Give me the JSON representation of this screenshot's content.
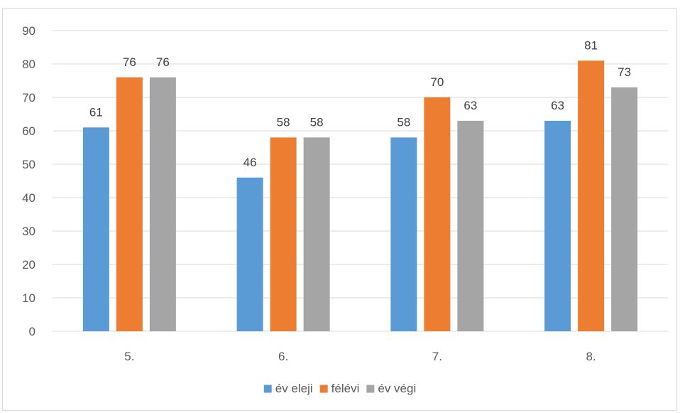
{
  "chart_data": {
    "type": "bar",
    "categories": [
      "5.",
      "6.",
      "7.",
      "8."
    ],
    "series": [
      {
        "name": "év eleji",
        "values": [
          61,
          46,
          58,
          63
        ],
        "color": "#5b9bd5"
      },
      {
        "name": "félévi",
        "values": [
          76,
          58,
          70,
          81
        ],
        "color": "#ed7d31"
      },
      {
        "name": "év végi",
        "values": [
          76,
          58,
          63,
          73
        ],
        "color": "#a5a5a5"
      }
    ],
    "ylim": [
      0,
      90
    ],
    "yticks": [
      0,
      10,
      20,
      30,
      40,
      50,
      60,
      70,
      80,
      90
    ],
    "grid": true,
    "legend_position": "bottom",
    "data_labels": true
  }
}
